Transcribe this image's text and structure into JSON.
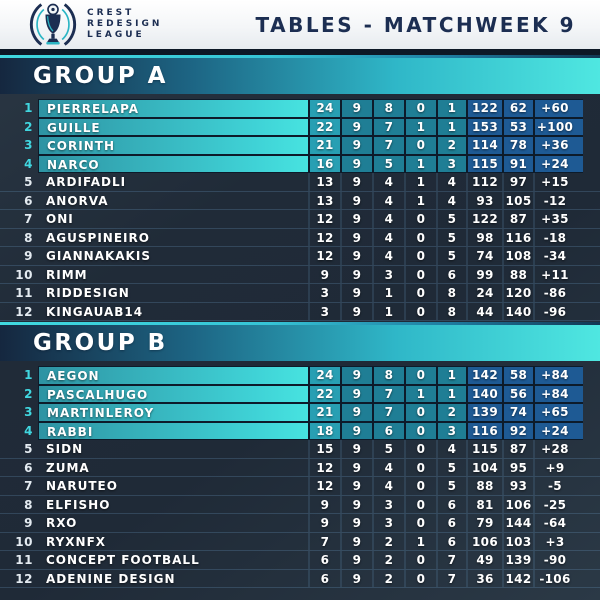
{
  "header": {
    "logo_lines": [
      "CREST",
      "REDESIGN",
      "LEAGUE"
    ],
    "title": "TABLES - MATCHWEEK 9"
  },
  "colors": {
    "accent_cyan": "#47e3e0",
    "highlight_teal": "#1f7e95",
    "highlight_blue": "#1e5a94",
    "navy_text": "#1c2e52",
    "background_dark": "#222d3a",
    "position_cyan": "#41d7e0"
  },
  "chart_data": [
    {
      "type": "table",
      "title": "GROUP A",
      "qualified_rows": 4,
      "rows": [
        {
          "pos": "1",
          "team": "PIERRELAPA",
          "values": [
            "24",
            "9",
            "8",
            "0",
            "1",
            "122",
            "62",
            "+60"
          ]
        },
        {
          "pos": "2",
          "team": "GUILLE",
          "values": [
            "22",
            "9",
            "7",
            "1",
            "1",
            "153",
            "53",
            "+100"
          ]
        },
        {
          "pos": "3",
          "team": "CORINTH",
          "values": [
            "21",
            "9",
            "7",
            "0",
            "2",
            "114",
            "78",
            "+36"
          ]
        },
        {
          "pos": "4",
          "team": "NARCO",
          "values": [
            "16",
            "9",
            "5",
            "1",
            "3",
            "115",
            "91",
            "+24"
          ]
        },
        {
          "pos": "5",
          "team": "ARDIFADLI",
          "values": [
            "13",
            "9",
            "4",
            "1",
            "4",
            "112",
            "97",
            "+15"
          ]
        },
        {
          "pos": "6",
          "team": "ANORVA",
          "values": [
            "13",
            "9",
            "4",
            "1",
            "4",
            "93",
            "105",
            "-12"
          ]
        },
        {
          "pos": "7",
          "team": "ONI",
          "values": [
            "12",
            "9",
            "4",
            "0",
            "5",
            "122",
            "87",
            "+35"
          ]
        },
        {
          "pos": "8",
          "team": "AGUSPINEIRO",
          "values": [
            "12",
            "9",
            "4",
            "0",
            "5",
            "98",
            "116",
            "-18"
          ]
        },
        {
          "pos": "9",
          "team": "GIANNAKAKIS",
          "values": [
            "12",
            "9",
            "4",
            "0",
            "5",
            "74",
            "108",
            "-34"
          ]
        },
        {
          "pos": "10",
          "team": "RIMM",
          "values": [
            "9",
            "9",
            "3",
            "0",
            "6",
            "99",
            "88",
            "+11"
          ]
        },
        {
          "pos": "11",
          "team": "RIDDESIGN",
          "values": [
            "3",
            "9",
            "1",
            "0",
            "8",
            "24",
            "120",
            "-86"
          ]
        },
        {
          "pos": "12",
          "team": "KINGAUAB14",
          "values": [
            "3",
            "9",
            "1",
            "0",
            "8",
            "44",
            "140",
            "-96"
          ]
        }
      ]
    },
    {
      "type": "table",
      "title": "GROUP B",
      "qualified_rows": 4,
      "rows": [
        {
          "pos": "1",
          "team": "AEGON",
          "values": [
            "24",
            "9",
            "8",
            "0",
            "1",
            "142",
            "58",
            "+84"
          ]
        },
        {
          "pos": "2",
          "team": "PASCALHUGO",
          "values": [
            "22",
            "9",
            "7",
            "1",
            "1",
            "140",
            "56",
            "+84"
          ]
        },
        {
          "pos": "3",
          "team": "MARTINLEROY",
          "values": [
            "21",
            "9",
            "7",
            "0",
            "2",
            "139",
            "74",
            "+65"
          ]
        },
        {
          "pos": "4",
          "team": "RABBI",
          "values": [
            "18",
            "9",
            "6",
            "0",
            "3",
            "116",
            "92",
            "+24"
          ]
        },
        {
          "pos": "5",
          "team": "SIDN",
          "values": [
            "15",
            "9",
            "5",
            "0",
            "4",
            "115",
            "87",
            "+28"
          ]
        },
        {
          "pos": "6",
          "team": "ZUMA",
          "values": [
            "12",
            "9",
            "4",
            "0",
            "5",
            "104",
            "95",
            "+9"
          ]
        },
        {
          "pos": "7",
          "team": "NARUTEO",
          "values": [
            "12",
            "9",
            "4",
            "0",
            "5",
            "88",
            "93",
            "-5"
          ]
        },
        {
          "pos": "8",
          "team": "ELFISHO",
          "values": [
            "9",
            "9",
            "3",
            "0",
            "6",
            "81",
            "106",
            "-25"
          ]
        },
        {
          "pos": "9",
          "team": "RXO",
          "values": [
            "9",
            "9",
            "3",
            "0",
            "6",
            "79",
            "144",
            "-64"
          ]
        },
        {
          "pos": "10",
          "team": "RYXNFX",
          "values": [
            "7",
            "9",
            "2",
            "1",
            "6",
            "106",
            "103",
            "+3"
          ]
        },
        {
          "pos": "11",
          "team": "CONCEPT FOOTBALL",
          "values": [
            "6",
            "9",
            "2",
            "0",
            "7",
            "49",
            "139",
            "-90"
          ]
        },
        {
          "pos": "12",
          "team": "ADENINE DESIGN",
          "values": [
            "6",
            "9",
            "2",
            "0",
            "7",
            "36",
            "142",
            "-106"
          ]
        }
      ]
    }
  ]
}
